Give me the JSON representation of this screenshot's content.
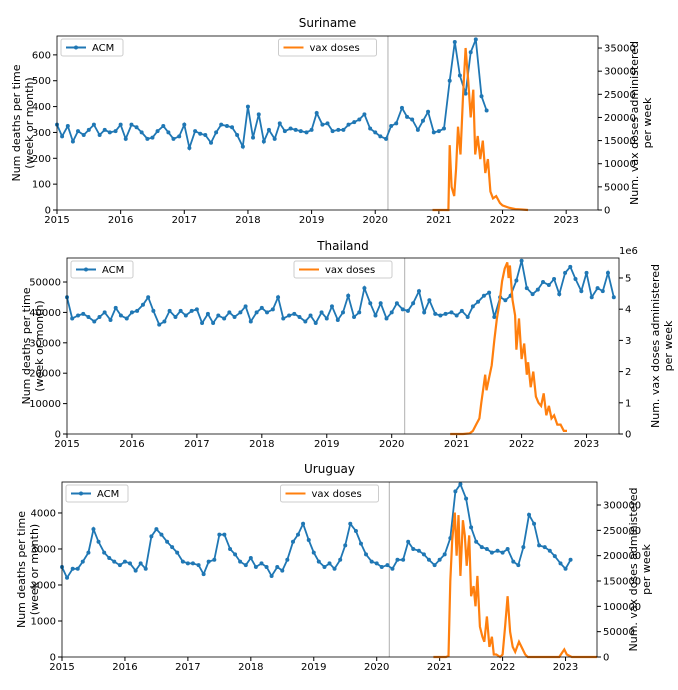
{
  "chart_data": [
    {
      "type": "line",
      "title": "Suriname",
      "ylabel": [
        "Num deaths per time",
        "(week or month)"
      ],
      "y2label": [
        "Num. vax doses administered",
        "per week"
      ],
      "xlim": [
        2015,
        2023.5
      ],
      "xticks": [
        2015,
        2016,
        2017,
        2018,
        2019,
        2020,
        2021,
        2022,
        2023
      ],
      "ylim": [
        0,
        673
      ],
      "yticks": [
        0,
        100,
        200,
        300,
        400,
        500,
        600
      ],
      "y2lim": [
        0,
        37600
      ],
      "y2ticks": [
        0,
        5000,
        10000,
        15000,
        20000,
        25000,
        30000,
        35000
      ],
      "vline": 2020.2,
      "legend": "upper left",
      "legend2": "upper center",
      "series": [
        {
          "name": "ACM",
          "color": "#1f77b4",
          "axis": "y",
          "x": [
            2015.0,
            2015.08,
            2015.17,
            2015.25,
            2015.33,
            2015.42,
            2015.5,
            2015.58,
            2015.67,
            2015.75,
            2015.83,
            2015.92,
            2016.0,
            2016.08,
            2016.17,
            2016.25,
            2016.33,
            2016.42,
            2016.5,
            2016.58,
            2016.67,
            2016.75,
            2016.83,
            2016.92,
            2017.0,
            2017.08,
            2017.17,
            2017.25,
            2017.33,
            2017.42,
            2017.5,
            2017.58,
            2017.67,
            2017.75,
            2017.83,
            2017.92,
            2018.0,
            2018.08,
            2018.17,
            2018.25,
            2018.33,
            2018.42,
            2018.5,
            2018.58,
            2018.67,
            2018.75,
            2018.83,
            2018.92,
            2019.0,
            2019.08,
            2019.17,
            2019.25,
            2019.33,
            2019.42,
            2019.5,
            2019.58,
            2019.67,
            2019.75,
            2019.83,
            2019.92,
            2020.0,
            2020.08,
            2020.17,
            2020.25,
            2020.33,
            2020.42,
            2020.5,
            2020.58,
            2020.67,
            2020.75,
            2020.83,
            2020.92,
            2021.0,
            2021.08,
            2021.17,
            2021.25,
            2021.33,
            2021.42,
            2021.5,
            2021.58,
            2021.67,
            2021.75
          ],
          "values": [
            330,
            285,
            325,
            265,
            305,
            290,
            310,
            330,
            290,
            310,
            300,
            305,
            330,
            275,
            330,
            320,
            300,
            275,
            280,
            305,
            325,
            300,
            275,
            285,
            330,
            240,
            305,
            295,
            290,
            260,
            300,
            330,
            325,
            320,
            290,
            245,
            400,
            280,
            370,
            265,
            310,
            275,
            335,
            305,
            315,
            310,
            305,
            300,
            310,
            375,
            330,
            335,
            305,
            310,
            310,
            330,
            340,
            350,
            370,
            315,
            300,
            285,
            275,
            325,
            335,
            395,
            360,
            350,
            310,
            345,
            380,
            300,
            305,
            315,
            500,
            650,
            520,
            450,
            610,
            660,
            440,
            385
          ]
        },
        {
          "name": "vax doses",
          "color": "#ff7f0e",
          "axis": "y2",
          "x": [
            2020.9,
            2021.0,
            2021.1,
            2021.15,
            2021.17,
            2021.2,
            2021.24,
            2021.27,
            2021.3,
            2021.34,
            2021.38,
            2021.42,
            2021.46,
            2021.5,
            2021.54,
            2021.57,
            2021.61,
            2021.65,
            2021.69,
            2021.73,
            2021.77,
            2021.81,
            2021.85,
            2021.9,
            2021.96,
            2022.0,
            2022.1,
            2022.2,
            2022.3,
            2022.4
          ],
          "values": [
            0,
            0,
            0,
            0,
            14000,
            5000,
            3000,
            9000,
            18000,
            12000,
            25000,
            35000,
            28000,
            20000,
            26000,
            12000,
            16000,
            11000,
            15000,
            8000,
            11000,
            4000,
            2500,
            3000,
            1500,
            1000,
            500,
            200,
            100,
            0
          ]
        }
      ]
    },
    {
      "type": "line",
      "title": "Thailand",
      "ylabel": [
        "Num deaths per time",
        "(week or month)"
      ],
      "y2label": [
        "Num. vax doses administered",
        "per week"
      ],
      "xlim": [
        2015,
        2023.5
      ],
      "xticks": [
        2015,
        2016,
        2017,
        2018,
        2019,
        2020,
        2021,
        2022,
        2023
      ],
      "ylim": [
        0,
        57900
      ],
      "yticks": [
        0,
        10000,
        20000,
        30000,
        40000,
        50000
      ],
      "y2lim": [
        0,
        5.64
      ],
      "y2ticks": [
        0,
        1,
        2,
        3,
        4,
        5
      ],
      "y2_offset_label": "1e6",
      "vline": 2020.2,
      "legend": "upper left",
      "legend2": "upper center",
      "series": [
        {
          "name": "ACM",
          "color": "#1f77b4",
          "axis": "y",
          "x": [
            2015.0,
            2015.08,
            2015.17,
            2015.25,
            2015.33,
            2015.42,
            2015.5,
            2015.58,
            2015.67,
            2015.75,
            2015.83,
            2015.92,
            2016.0,
            2016.08,
            2016.17,
            2016.25,
            2016.33,
            2016.42,
            2016.5,
            2016.58,
            2016.67,
            2016.75,
            2016.83,
            2016.92,
            2017.0,
            2017.08,
            2017.17,
            2017.25,
            2017.33,
            2017.42,
            2017.5,
            2017.58,
            2017.67,
            2017.75,
            2017.83,
            2017.92,
            2018.0,
            2018.08,
            2018.17,
            2018.25,
            2018.33,
            2018.42,
            2018.5,
            2018.58,
            2018.67,
            2018.75,
            2018.83,
            2018.92,
            2019.0,
            2019.08,
            2019.17,
            2019.25,
            2019.33,
            2019.42,
            2019.5,
            2019.58,
            2019.67,
            2019.75,
            2019.83,
            2019.92,
            2020.0,
            2020.08,
            2020.17,
            2020.25,
            2020.33,
            2020.42,
            2020.5,
            2020.58,
            2020.67,
            2020.75,
            2020.83,
            2020.92,
            2021.0,
            2021.08,
            2021.17,
            2021.25,
            2021.33,
            2021.42,
            2021.5,
            2021.58,
            2021.67,
            2021.75,
            2021.83,
            2021.92,
            2022.0,
            2022.08,
            2022.17,
            2022.25,
            2022.33,
            2022.42,
            2022.5,
            2022.58,
            2022.67,
            2022.75,
            2022.83,
            2022.92,
            2023.0,
            2023.08,
            2023.17,
            2023.25,
            2023.33,
            2023.42
          ],
          "values": [
            45000,
            38000,
            39000,
            39500,
            38500,
            37000,
            38500,
            40000,
            37500,
            41500,
            39000,
            38000,
            40000,
            40500,
            42500,
            45000,
            40500,
            36000,
            37000,
            40500,
            38500,
            40500,
            39000,
            40500,
            41000,
            36500,
            39500,
            36500,
            39000,
            38000,
            40000,
            38500,
            40000,
            42000,
            37000,
            40000,
            41500,
            40000,
            41000,
            45000,
            38000,
            39000,
            39500,
            38500,
            37000,
            39000,
            36500,
            40000,
            38000,
            42000,
            37500,
            40000,
            45500,
            38500,
            40000,
            48000,
            43000,
            39000,
            43000,
            38000,
            40000,
            43000,
            41000,
            40500,
            43000,
            47000,
            40000,
            44000,
            39500,
            39000,
            39500,
            40000,
            39000,
            40500,
            38500,
            42000,
            43500,
            45500,
            46500,
            38500,
            45000,
            44000,
            45500,
            50500,
            57000,
            48000,
            46000,
            47500,
            50000,
            49000,
            51000,
            46000,
            53000,
            55000,
            51000,
            47000,
            53000,
            45000,
            48000,
            47000,
            53000,
            45000
          ]
        },
        {
          "name": "vax doses",
          "color": "#ff7f0e",
          "axis": "y2",
          "x": [
            2020.9,
            2021.0,
            2021.1,
            2021.2,
            2021.25,
            2021.3,
            2021.35,
            2021.38,
            2021.42,
            2021.44,
            2021.46,
            2021.5,
            2021.54,
            2021.58,
            2021.62,
            2021.66,
            2021.7,
            2021.74,
            2021.78,
            2021.8,
            2021.82,
            2021.86,
            2021.9,
            2021.92,
            2021.96,
            2022.0,
            2022.04,
            2022.08,
            2022.1,
            2022.14,
            2022.18,
            2022.22,
            2022.26,
            2022.3,
            2022.34,
            2022.38,
            2022.42,
            2022.46,
            2022.5,
            2022.55,
            2022.6,
            2022.65,
            2022.7
          ],
          "values": [
            0,
            0,
            0,
            0.02,
            0.1,
            0.3,
            0.5,
            1.0,
            1.6,
            1.9,
            1.4,
            1.8,
            2.2,
            3.0,
            3.7,
            4.2,
            4.9,
            5.3,
            5.5,
            5.0,
            5.4,
            4.3,
            3.8,
            2.7,
            3.7,
            2.4,
            2.9,
            1.9,
            2.3,
            1.5,
            2.0,
            1.2,
            1.0,
            0.9,
            1.3,
            0.6,
            0.9,
            0.5,
            0.6,
            0.3,
            0.3,
            0.1,
            0.1
          ]
        }
      ]
    },
    {
      "type": "line",
      "title": "Uruguay",
      "ylabel": [
        "Num deaths per time",
        "(week or month)"
      ],
      "y2label": [
        "Num. vax doses administered",
        "per week"
      ],
      "xlim": [
        2015,
        2023.5
      ],
      "xticks": [
        2015,
        2016,
        2017,
        2018,
        2019,
        2020,
        2021,
        2022,
        2023
      ],
      "ylim": [
        0,
        4860
      ],
      "yticks": [
        0,
        1000,
        2000,
        3000,
        4000
      ],
      "y2lim": [
        0,
        345400
      ],
      "y2ticks": [
        0,
        50000,
        100000,
        150000,
        200000,
        250000,
        300000
      ],
      "vline": 2020.2,
      "legend": "upper left",
      "legend2": "upper center",
      "series": [
        {
          "name": "ACM",
          "color": "#1f77b4",
          "axis": "y",
          "x": [
            2015.0,
            2015.08,
            2015.17,
            2015.25,
            2015.33,
            2015.42,
            2015.5,
            2015.58,
            2015.67,
            2015.75,
            2015.83,
            2015.92,
            2016.0,
            2016.08,
            2016.17,
            2016.25,
            2016.33,
            2016.42,
            2016.5,
            2016.58,
            2016.67,
            2016.75,
            2016.83,
            2016.92,
            2017.0,
            2017.08,
            2017.17,
            2017.25,
            2017.33,
            2017.42,
            2017.5,
            2017.58,
            2017.67,
            2017.75,
            2017.83,
            2017.92,
            2018.0,
            2018.08,
            2018.17,
            2018.25,
            2018.33,
            2018.42,
            2018.5,
            2018.58,
            2018.67,
            2018.75,
            2018.83,
            2018.92,
            2019.0,
            2019.08,
            2019.17,
            2019.25,
            2019.33,
            2019.42,
            2019.5,
            2019.58,
            2019.67,
            2019.75,
            2019.83,
            2019.92,
            2020.0,
            2020.08,
            2020.17,
            2020.25,
            2020.33,
            2020.42,
            2020.5,
            2020.58,
            2020.67,
            2020.75,
            2020.83,
            2020.92,
            2021.0,
            2021.08,
            2021.17,
            2021.25,
            2021.33,
            2021.42,
            2021.5,
            2021.58,
            2021.67,
            2021.75,
            2021.83,
            2021.92,
            2022.0,
            2022.08,
            2022.17,
            2022.25,
            2022.33,
            2022.42,
            2022.5,
            2022.58,
            2022.67,
            2022.75,
            2022.83,
            2022.92,
            2023.0,
            2023.08
          ],
          "values": [
            2500,
            2200,
            2450,
            2450,
            2650,
            2900,
            3550,
            3200,
            2900,
            2750,
            2650,
            2550,
            2650,
            2600,
            2400,
            2600,
            2450,
            3350,
            3550,
            3400,
            3200,
            3050,
            2900,
            2650,
            2600,
            2600,
            2550,
            2300,
            2650,
            2700,
            3400,
            3400,
            3000,
            2850,
            2650,
            2550,
            2750,
            2500,
            2600,
            2500,
            2250,
            2500,
            2400,
            2700,
            3200,
            3400,
            3700,
            3250,
            2900,
            2650,
            2500,
            2600,
            2450,
            2700,
            3100,
            3700,
            3500,
            3150,
            2850,
            2650,
            2600,
            2500,
            2550,
            2450,
            2700,
            2700,
            3200,
            3000,
            2950,
            2850,
            2700,
            2550,
            2700,
            2850,
            3300,
            4600,
            4800,
            4400,
            3600,
            3200,
            3050,
            3000,
            2900,
            2950,
            2900,
            3000,
            2650,
            2550,
            3050,
            3950,
            3700,
            3100,
            3050,
            2950,
            2800,
            2600,
            2450,
            2700
          ]
        },
        {
          "name": "vax doses",
          "color": "#ff7f0e",
          "axis": "y2",
          "x": [
            2020.9,
            2021.0,
            2021.1,
            2021.14,
            2021.17,
            2021.2,
            2021.24,
            2021.27,
            2021.3,
            2021.33,
            2021.37,
            2021.4,
            2021.43,
            2021.47,
            2021.5,
            2021.54,
            2021.57,
            2021.6,
            2021.64,
            2021.68,
            2021.71,
            2021.75,
            2021.79,
            2021.83,
            2021.86,
            2021.9,
            2021.96,
            2022.0,
            2022.04,
            2022.08,
            2022.12,
            2022.16,
            2022.2,
            2022.26,
            2022.3,
            2022.36,
            2022.4,
            2022.6,
            2022.9,
            2022.98,
            2023.02,
            2023.1,
            2023.5
          ],
          "values": [
            0,
            0,
            0,
            2000,
            150000,
            230000,
            285000,
            200000,
            280000,
            160000,
            270000,
            240000,
            180000,
            240000,
            120000,
            140000,
            100000,
            160000,
            60000,
            40000,
            30000,
            80000,
            20000,
            40000,
            5000,
            5000,
            0,
            5000,
            60000,
            120000,
            50000,
            20000,
            10000,
            30000,
            20000,
            5000,
            0,
            0,
            0,
            15000,
            5000,
            0,
            0
          ]
        }
      ]
    }
  ]
}
